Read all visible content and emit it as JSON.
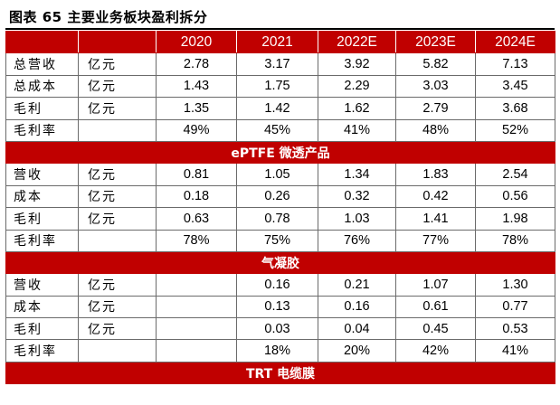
{
  "title": "图表 65  主要业务板块盈利拆分",
  "years": [
    "2020",
    "2021",
    "2022E",
    "2023E",
    "2024E"
  ],
  "sections": [
    {
      "name": "",
      "rows": [
        {
          "label": "总营收",
          "unit": "亿元",
          "values": [
            "2.78",
            "3.17",
            "3.92",
            "5.82",
            "7.13"
          ]
        },
        {
          "label": "总成本",
          "unit": "亿元",
          "values": [
            "1.43",
            "1.75",
            "2.29",
            "3.03",
            "3.45"
          ]
        },
        {
          "label": "毛利",
          "unit": "亿元",
          "values": [
            "1.35",
            "1.42",
            "1.62",
            "2.79",
            "3.68"
          ]
        },
        {
          "label": "毛利率",
          "unit": "",
          "values": [
            "49%",
            "45%",
            "41%",
            "48%",
            "52%"
          ]
        }
      ]
    },
    {
      "name": "ePTFE 微透产品",
      "rows": [
        {
          "label": "营收",
          "unit": "亿元",
          "values": [
            "0.81",
            "1.05",
            "1.34",
            "1.83",
            "2.54"
          ]
        },
        {
          "label": "成本",
          "unit": "亿元",
          "values": [
            "0.18",
            "0.26",
            "0.32",
            "0.42",
            "0.56"
          ]
        },
        {
          "label": "毛利",
          "unit": "亿元",
          "values": [
            "0.63",
            "0.78",
            "1.03",
            "1.41",
            "1.98"
          ]
        },
        {
          "label": "毛利率",
          "unit": "",
          "values": [
            "78%",
            "75%",
            "76%",
            "77%",
            "78%"
          ]
        }
      ]
    },
    {
      "name": "气凝胶",
      "rows": [
        {
          "label": "营收",
          "unit": "亿元",
          "values": [
            "",
            "0.16",
            "0.21",
            "1.07",
            "1.30"
          ]
        },
        {
          "label": "成本",
          "unit": "亿元",
          "values": [
            "",
            "0.13",
            "0.16",
            "0.61",
            "0.77"
          ]
        },
        {
          "label": "毛利",
          "unit": "亿元",
          "values": [
            "",
            "0.03",
            "0.04",
            "0.45",
            "0.53"
          ]
        },
        {
          "label": "毛利率",
          "unit": "",
          "values": [
            "",
            "18%",
            "20%",
            "42%",
            "41%"
          ]
        }
      ]
    },
    {
      "name": "TRT 电缆膜",
      "rows": []
    }
  ],
  "colors": {
    "header_bg": "#c00000",
    "header_text": "#ffffff",
    "grid": "#6b6b6b"
  }
}
